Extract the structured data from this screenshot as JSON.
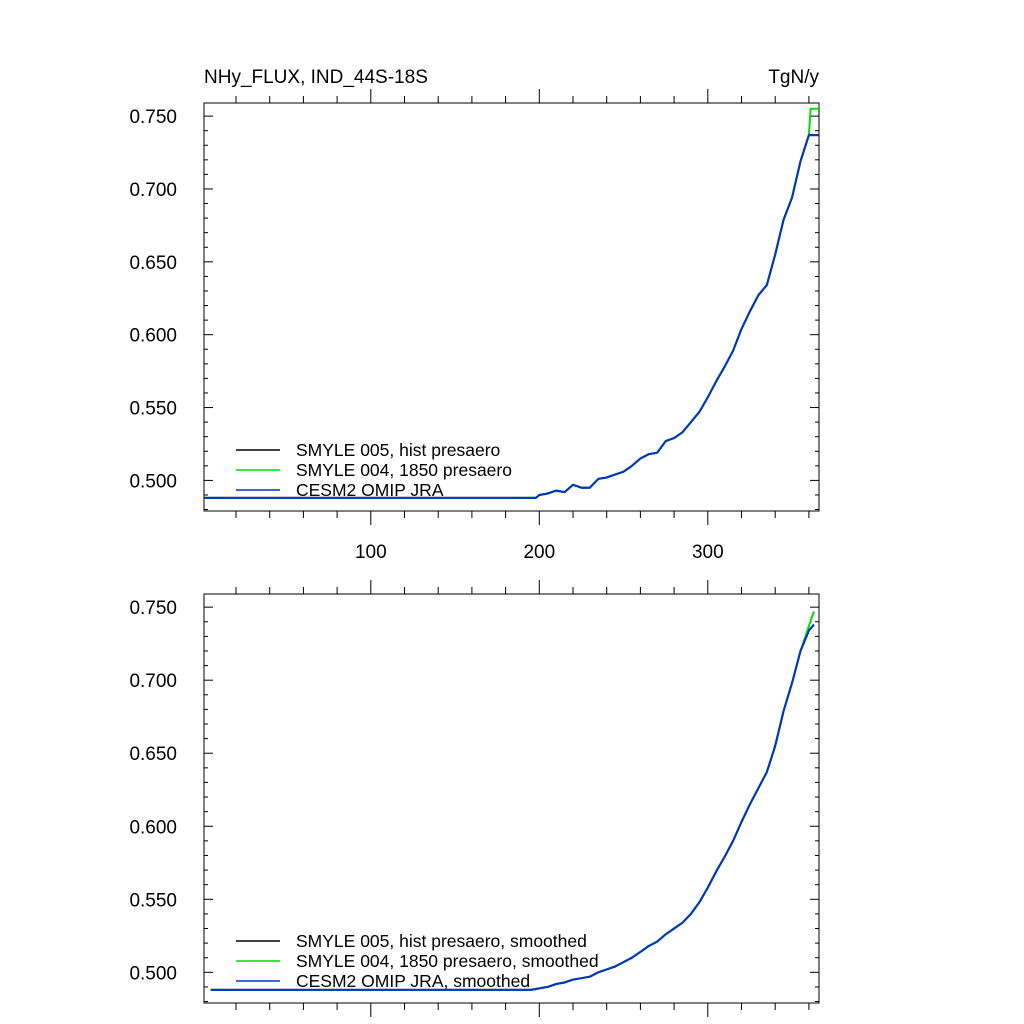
{
  "chart_data": [
    {
      "type": "line",
      "title_left": "NHy_FLUX, IND_44S-18S",
      "title_right": "TgN/y",
      "xlim": [
        1,
        366
      ],
      "ylim": [
        0.479,
        0.759
      ],
      "xticks": [
        100,
        200,
        300
      ],
      "xtick_labels": [
        "100",
        "200",
        "300"
      ],
      "yticks": [
        0.5,
        0.55,
        0.6,
        0.65,
        0.7,
        0.75
      ],
      "ytick_labels": [
        "0.500",
        "0.550",
        "0.600",
        "0.650",
        "0.700",
        "0.750"
      ],
      "legend_position": "bottom-left",
      "series": [
        {
          "name": "SMYLE 005, hist presaero",
          "color": "#000000",
          "x": [
            1,
            198,
            200,
            205,
            210,
            215,
            220,
            225,
            230,
            235,
            240,
            245,
            250,
            255,
            260,
            265,
            270,
            275,
            280,
            285,
            290,
            295,
            300,
            305,
            310,
            315,
            320,
            325,
            330,
            335,
            340,
            345,
            350,
            355,
            360,
            366
          ],
          "y": [
            0.488,
            0.488,
            0.49,
            0.491,
            0.493,
            0.492,
            0.497,
            0.495,
            0.495,
            0.501,
            0.502,
            0.504,
            0.506,
            0.51,
            0.515,
            0.518,
            0.519,
            0.527,
            0.529,
            0.533,
            0.54,
            0.547,
            0.557,
            0.568,
            0.578,
            0.589,
            0.604,
            0.616,
            0.627,
            0.634,
            0.655,
            0.679,
            0.694,
            0.719,
            0.737,
            0.737
          ]
        },
        {
          "name": "SMYLE 004, 1850 presaero",
          "color": "#00dd00",
          "x": [
            1,
            198,
            200,
            205,
            210,
            215,
            220,
            225,
            230,
            235,
            240,
            245,
            250,
            255,
            260,
            265,
            270,
            275,
            280,
            285,
            290,
            295,
            300,
            305,
            310,
            315,
            320,
            325,
            330,
            335,
            340,
            345,
            350,
            355,
            360,
            361,
            366
          ],
          "y": [
            0.488,
            0.488,
            0.49,
            0.491,
            0.493,
            0.492,
            0.497,
            0.495,
            0.495,
            0.501,
            0.502,
            0.504,
            0.506,
            0.51,
            0.515,
            0.518,
            0.519,
            0.527,
            0.529,
            0.533,
            0.54,
            0.547,
            0.557,
            0.568,
            0.578,
            0.589,
            0.604,
            0.616,
            0.627,
            0.634,
            0.655,
            0.679,
            0.694,
            0.719,
            0.737,
            0.755,
            0.755
          ]
        },
        {
          "name": "CESM2 OMIP JRA",
          "color": "#0033cc",
          "x": [
            1,
            198,
            200,
            205,
            210,
            215,
            220,
            225,
            230,
            235,
            240,
            245,
            250,
            255,
            260,
            265,
            270,
            275,
            280,
            285,
            290,
            295,
            300,
            305,
            310,
            315,
            320,
            325,
            330,
            335,
            340,
            345,
            350,
            355,
            360,
            366
          ],
          "y": [
            0.488,
            0.488,
            0.49,
            0.491,
            0.493,
            0.492,
            0.497,
            0.495,
            0.495,
            0.501,
            0.502,
            0.504,
            0.506,
            0.51,
            0.515,
            0.518,
            0.519,
            0.527,
            0.529,
            0.533,
            0.54,
            0.547,
            0.557,
            0.568,
            0.578,
            0.589,
            0.604,
            0.616,
            0.627,
            0.634,
            0.655,
            0.679,
            0.694,
            0.719,
            0.737,
            0.737
          ]
        }
      ]
    },
    {
      "type": "line",
      "title_left": "",
      "title_right": "",
      "xlim": [
        1,
        366
      ],
      "ylim": [
        0.479,
        0.759
      ],
      "xticks": [
        100,
        200,
        300
      ],
      "xtick_labels": [],
      "yticks": [
        0.5,
        0.55,
        0.6,
        0.65,
        0.7,
        0.75
      ],
      "ytick_labels": [
        "0.500",
        "0.550",
        "0.600",
        "0.650",
        "0.700",
        "0.750"
      ],
      "legend_position": "bottom-left",
      "series": [
        {
          "name": "SMYLE 005, hist presaero, smoothed",
          "color": "#000000",
          "x": [
            5,
            195,
            200,
            205,
            210,
            215,
            220,
            225,
            230,
            235,
            240,
            245,
            250,
            255,
            260,
            265,
            270,
            275,
            280,
            285,
            290,
            295,
            300,
            305,
            310,
            315,
            320,
            325,
            330,
            335,
            340,
            345,
            350,
            355,
            360,
            363
          ],
          "y": [
            0.488,
            0.488,
            0.489,
            0.49,
            0.492,
            0.493,
            0.495,
            0.496,
            0.497,
            0.5,
            0.502,
            0.504,
            0.507,
            0.51,
            0.514,
            0.518,
            0.521,
            0.526,
            0.53,
            0.534,
            0.54,
            0.548,
            0.558,
            0.569,
            0.579,
            0.59,
            0.603,
            0.615,
            0.626,
            0.637,
            0.655,
            0.679,
            0.698,
            0.72,
            0.734,
            0.738
          ]
        },
        {
          "name": "SMYLE 004, 1850 presaero, smoothed",
          "color": "#00dd00",
          "x": [
            5,
            195,
            200,
            205,
            210,
            215,
            220,
            225,
            230,
            235,
            240,
            245,
            250,
            255,
            260,
            265,
            270,
            275,
            280,
            285,
            290,
            295,
            300,
            305,
            310,
            315,
            320,
            325,
            330,
            335,
            340,
            345,
            350,
            355,
            360,
            363
          ],
          "y": [
            0.488,
            0.488,
            0.489,
            0.49,
            0.492,
            0.493,
            0.495,
            0.496,
            0.497,
            0.5,
            0.502,
            0.504,
            0.507,
            0.51,
            0.514,
            0.518,
            0.521,
            0.526,
            0.53,
            0.534,
            0.54,
            0.548,
            0.558,
            0.569,
            0.579,
            0.59,
            0.603,
            0.615,
            0.626,
            0.637,
            0.655,
            0.679,
            0.698,
            0.72,
            0.737,
            0.747
          ]
        },
        {
          "name": "CESM2 OMIP JRA, smoothed",
          "color": "#0033cc",
          "x": [
            5,
            195,
            200,
            205,
            210,
            215,
            220,
            225,
            230,
            235,
            240,
            245,
            250,
            255,
            260,
            265,
            270,
            275,
            280,
            285,
            290,
            295,
            300,
            305,
            310,
            315,
            320,
            325,
            330,
            335,
            340,
            345,
            350,
            355,
            360,
            363
          ],
          "y": [
            0.488,
            0.488,
            0.489,
            0.49,
            0.492,
            0.493,
            0.495,
            0.496,
            0.497,
            0.5,
            0.502,
            0.504,
            0.507,
            0.51,
            0.514,
            0.518,
            0.521,
            0.526,
            0.53,
            0.534,
            0.54,
            0.548,
            0.558,
            0.569,
            0.579,
            0.59,
            0.603,
            0.615,
            0.626,
            0.637,
            0.655,
            0.679,
            0.698,
            0.72,
            0.734,
            0.738
          ]
        }
      ]
    }
  ]
}
